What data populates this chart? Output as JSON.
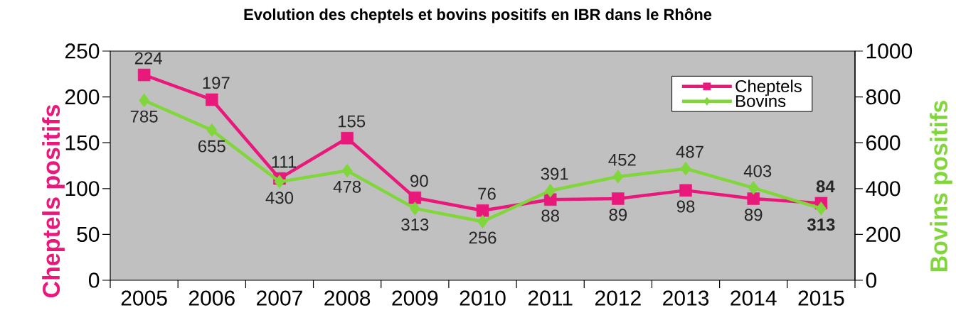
{
  "chart_data": {
    "type": "line",
    "title": "Evolution des cheptels et bovins positifs en IBR dans le Rhône",
    "ylabel": "Cheptels positifs",
    "y2label": "Bovins positifs",
    "categories": [
      "2005",
      "2006",
      "2007",
      "2008",
      "2009",
      "2010",
      "2011",
      "2012",
      "2013",
      "2014",
      "2015"
    ],
    "series": [
      {
        "name": "Cheptels",
        "color": "#e8197b",
        "marker": "square",
        "values": [
          224,
          197,
          111,
          155,
          90,
          76,
          88,
          89,
          98,
          89,
          84
        ],
        "value_labels": [
          "224",
          "197",
          "111",
          "155",
          "90",
          "76",
          "88",
          "89",
          "98",
          "89",
          "**84**"
        ]
      },
      {
        "name": "Bovins",
        "color": "#80d63a",
        "marker": "diamond",
        "axis": "y2",
        "values": [
          785,
          655,
          430,
          478,
          313,
          256,
          391,
          452,
          487,
          403,
          313
        ],
        "value_labels": [
          "785",
          "655",
          "430",
          "478",
          "313",
          "256",
          "391",
          "452",
          "487",
          "403",
          "**313**"
        ]
      }
    ],
    "ylim": [
      0,
      250
    ],
    "yticks": [
      0,
      50,
      100,
      150,
      200,
      250
    ],
    "y2lim": [
      0,
      1000
    ],
    "y2ticks": [
      0,
      200,
      400,
      600,
      800,
      1000
    ],
    "legend": "top right",
    "line_style": "solid"
  }
}
